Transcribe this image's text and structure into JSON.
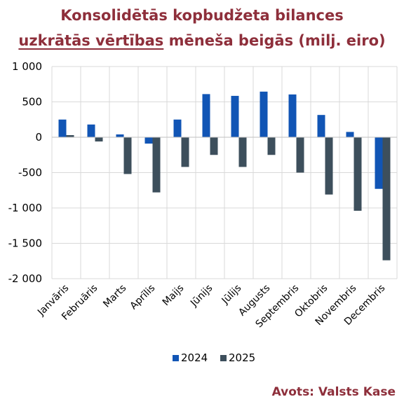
{
  "title": {
    "line1": "Konsolidētās kopbudžeta bilances",
    "line2_underlined": "uzkrātās vērtības",
    "line2_rest": " mēneša beigās (milj. eiro)"
  },
  "source": "Avots: Valsts Kase",
  "colors": {
    "series_2024": "#1155b5",
    "series_2025": "#3d4f5c",
    "title": "#8e2f3b",
    "grid": "#d9d9d9"
  },
  "chart_data": {
    "type": "bar",
    "categories": [
      "Janvāris",
      "Februāris",
      "Marts",
      "Aprīlis",
      "Maijs",
      "Jūnijs",
      "Jūlijs",
      "Augusts",
      "Septembris",
      "Oktobris",
      "Novembris",
      "Decembris"
    ],
    "series": [
      {
        "name": "2024",
        "values": [
          250,
          180,
          40,
          -90,
          250,
          610,
          585,
          645,
          605,
          315,
          75,
          -730
        ]
      },
      {
        "name": "2025",
        "values": [
          30,
          -60,
          -520,
          -780,
          -420,
          -250,
          -420,
          -250,
          -500,
          -810,
          -1040,
          -1740
        ]
      }
    ],
    "ylim": [
      -2000,
      1000
    ],
    "yticks": [
      1000,
      500,
      0,
      -500,
      -1000,
      -1500,
      -2000
    ],
    "ytick_labels": [
      "1 000",
      "500",
      "0",
      "-500",
      "-1 000",
      "-1 500",
      "-2 000"
    ],
    "grid": "horizontal",
    "legend": "bottom"
  }
}
